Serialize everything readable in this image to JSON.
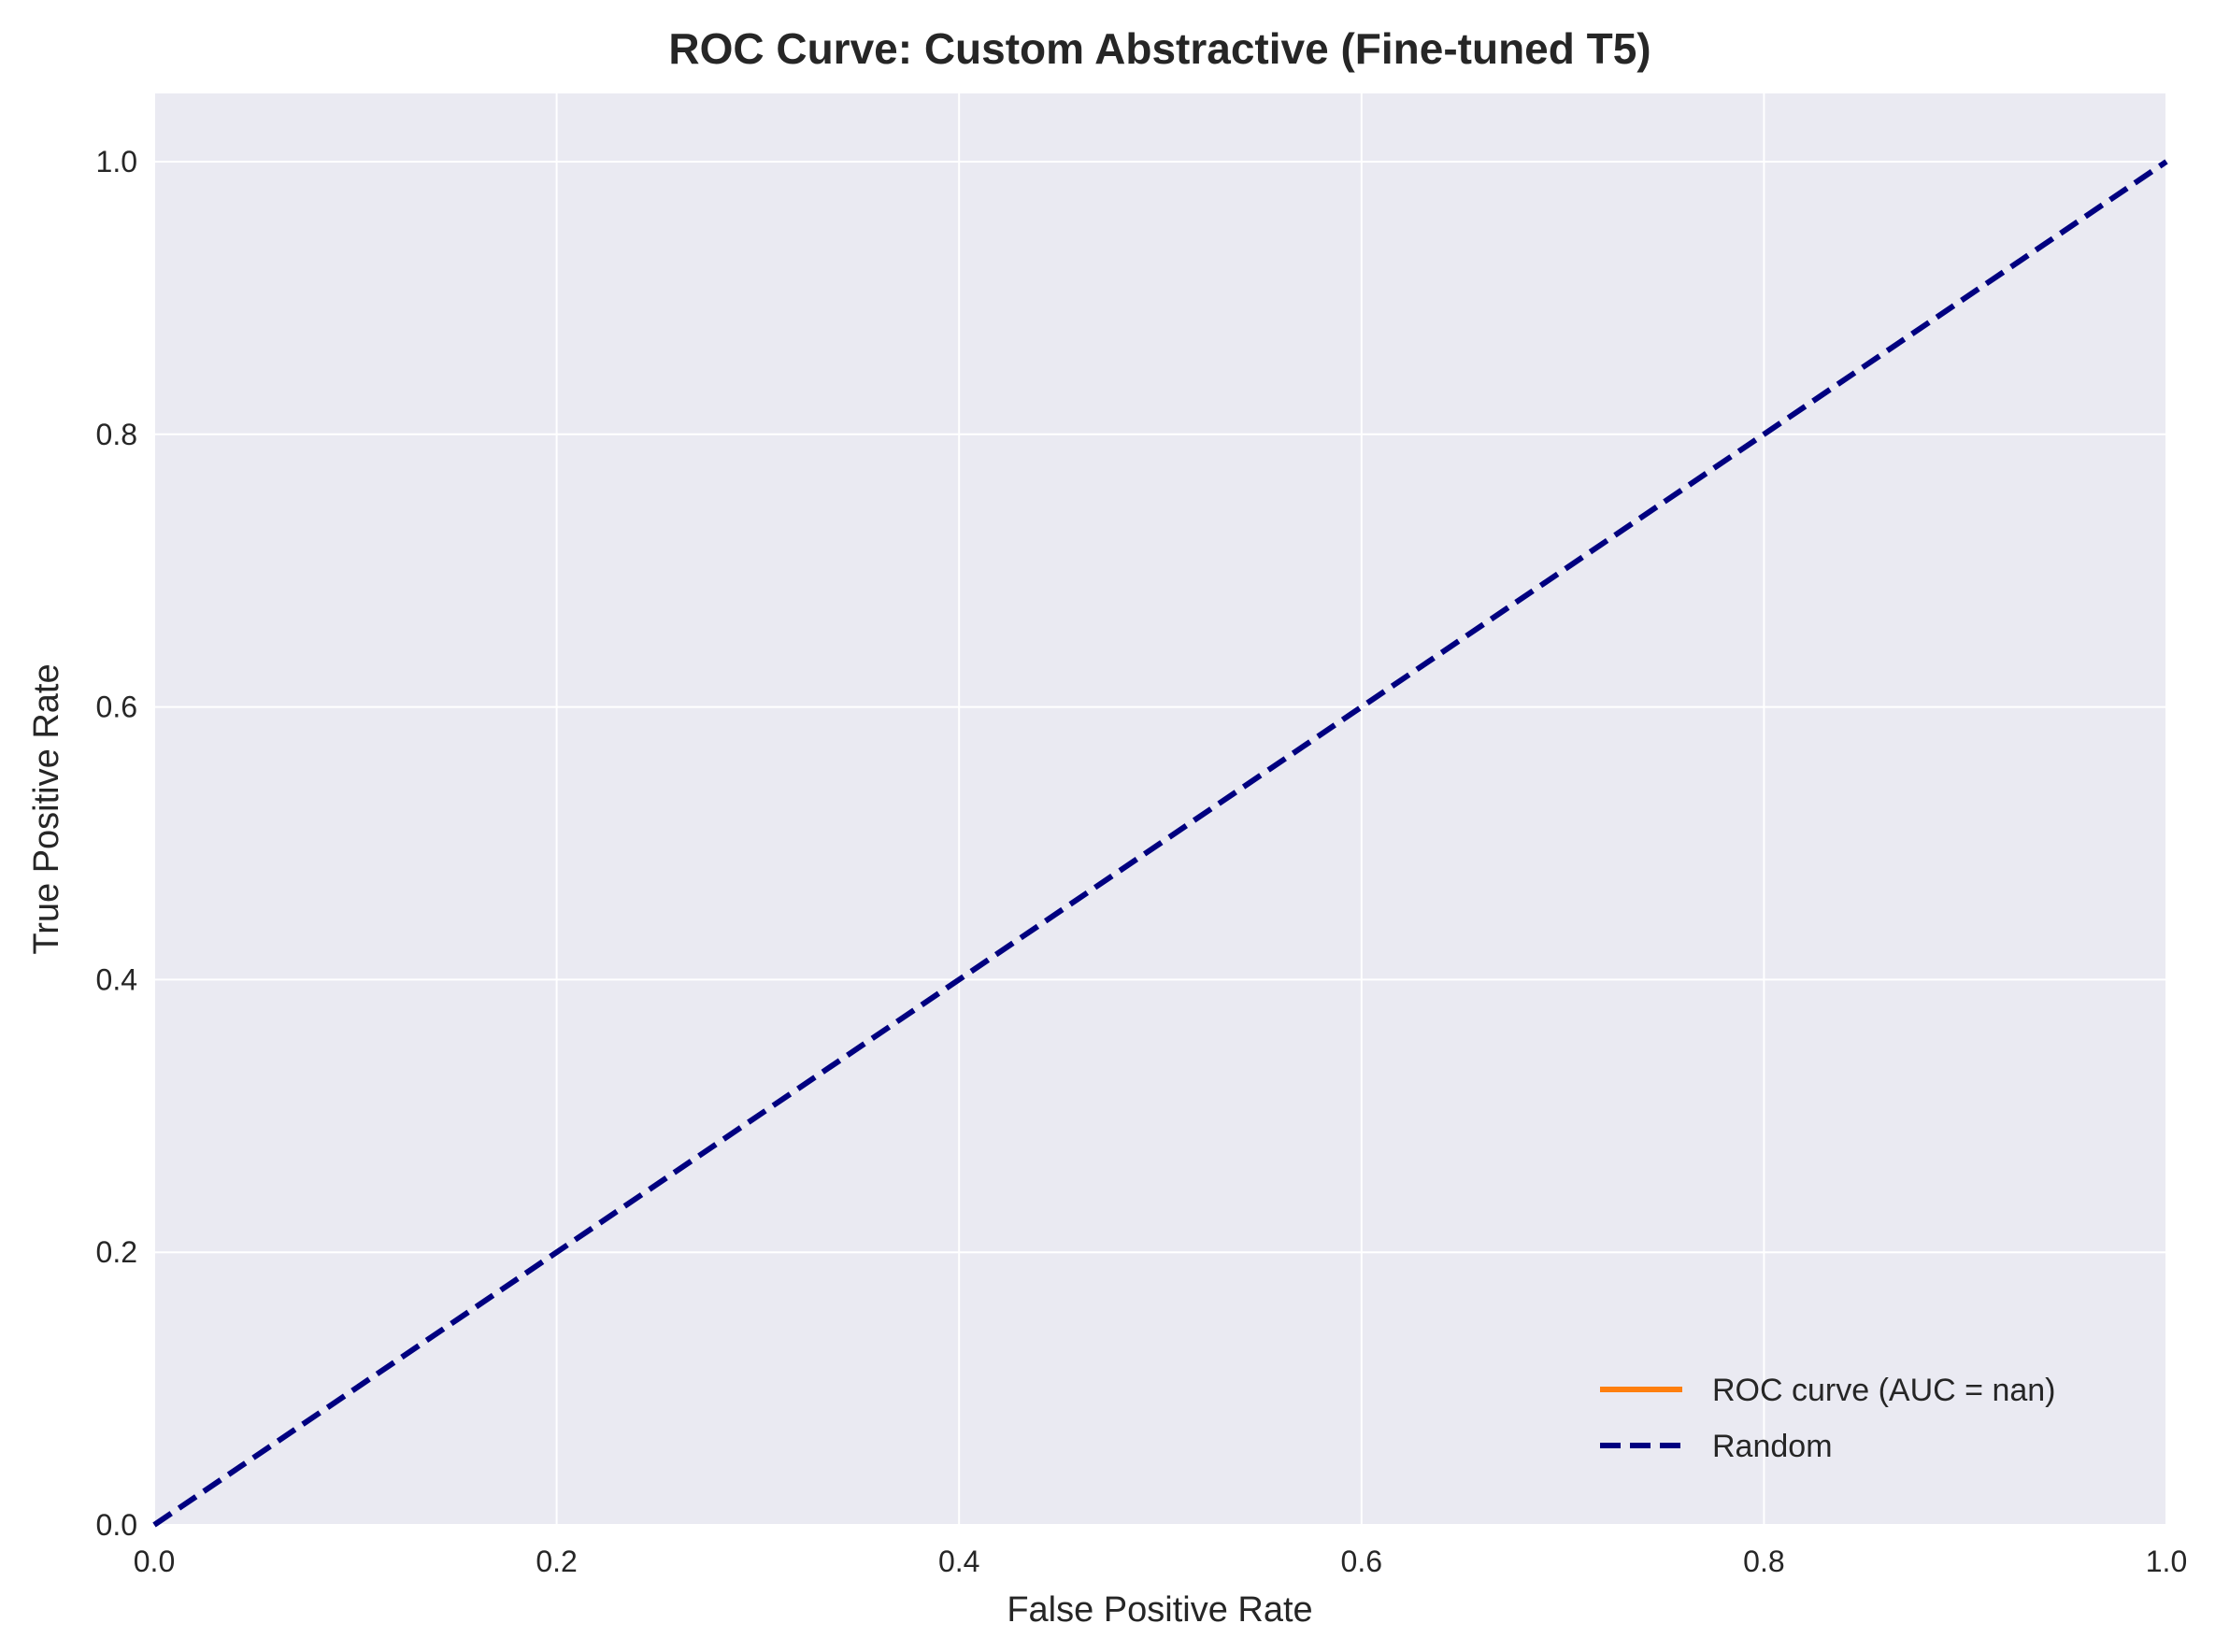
{
  "chart_data": {
    "type": "line",
    "title": "ROC Curve: Custom Abstractive (Fine-tuned T5)",
    "xlabel": "False Positive Rate",
    "ylabel": "True Positive Rate",
    "xlim": [
      0.0,
      1.0
    ],
    "ylim": [
      0.0,
      1.05
    ],
    "x_ticks": [
      0.0,
      0.2,
      0.4,
      0.6,
      0.8,
      1.0
    ],
    "y_ticks": [
      0.0,
      0.2,
      0.4,
      0.6,
      0.8,
      1.0
    ],
    "x_tick_labels": [
      "0.0",
      "0.2",
      "0.4",
      "0.6",
      "0.8",
      "1.0"
    ],
    "y_tick_labels": [
      "0.0",
      "0.2",
      "0.4",
      "0.6",
      "0.8",
      "1.0"
    ],
    "grid": true,
    "legend_position": "lower-right",
    "series": [
      {
        "name": "ROC curve (AUC = nan)",
        "color": "#ff7f0e",
        "style": "solid",
        "x": [],
        "y": []
      },
      {
        "name": "Random",
        "color": "#000080",
        "style": "dashed",
        "x": [
          0.0,
          1.0
        ],
        "y": [
          0.0,
          1.0
        ]
      }
    ]
  },
  "colors": {
    "plot_background": "#eaeaf2",
    "grid": "#ffffff"
  }
}
